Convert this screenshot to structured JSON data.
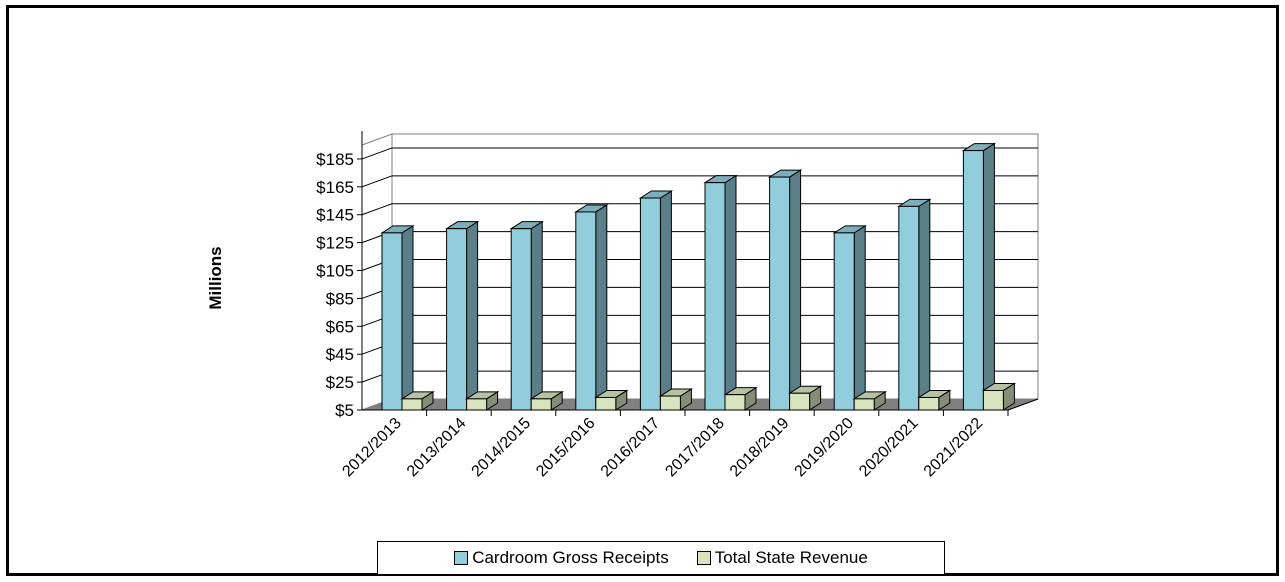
{
  "chart_data": {
    "type": "bar",
    "title": "",
    "xlabel": "",
    "ylabel": "Millions",
    "ylim": [
      5,
      195
    ],
    "y_ticks": [
      "$5",
      "$25",
      "$45",
      "$65",
      "$85",
      "$105",
      "$125",
      "$145",
      "$165",
      "$185"
    ],
    "y_tick_values": [
      5,
      25,
      45,
      65,
      85,
      105,
      125,
      145,
      165,
      185
    ],
    "grid": true,
    "style": "3d-clustered",
    "legend_position": "bottom",
    "categories": [
      "2012/2013",
      "2013/2014",
      "2014/2015",
      "2015/2016",
      "2016/2017",
      "2017/2018",
      "2018/2019",
      "2019/2020",
      "2020/2021",
      "2021/2022"
    ],
    "series": [
      {
        "name": "Cardroom Gross Receipts",
        "color": "#92CDDC",
        "values": [
          132,
          135,
          135,
          147,
          157,
          168,
          172,
          132,
          151,
          191
        ]
      },
      {
        "name": "Total State Revenue",
        "color": "#D7E4BD",
        "values": [
          13,
          13,
          13,
          14,
          15,
          16,
          17,
          13,
          14,
          19
        ]
      }
    ]
  }
}
